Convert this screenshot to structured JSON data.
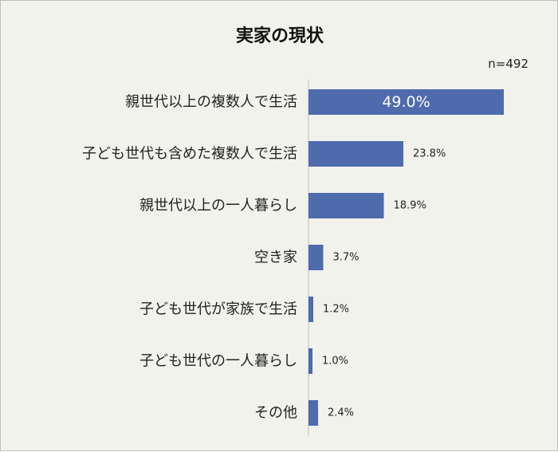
{
  "chart_data": {
    "type": "bar",
    "orientation": "horizontal",
    "title": "実家の現状",
    "note": "n=492",
    "categories": [
      "親世代以上の複数人で生活",
      "子ども世代も含めた複数人で生活",
      "親世代以上の一人暮らし",
      "空き家",
      "子ども世代が家族で生活",
      "子ども世代の一人暮らし",
      "その他"
    ],
    "values": [
      49.0,
      23.8,
      18.9,
      3.7,
      1.2,
      1.0,
      2.4
    ],
    "value_labels": [
      "49.0%",
      "23.8%",
      "18.9%",
      "3.7%",
      "1.2%",
      "1.0%",
      "2.4%"
    ],
    "xlim": [
      0,
      50
    ],
    "grid": false,
    "legend": "none",
    "colors": {
      "bar": "#4f6aad",
      "background": "#f2f2ed",
      "axis": "#bfbfbf"
    }
  }
}
